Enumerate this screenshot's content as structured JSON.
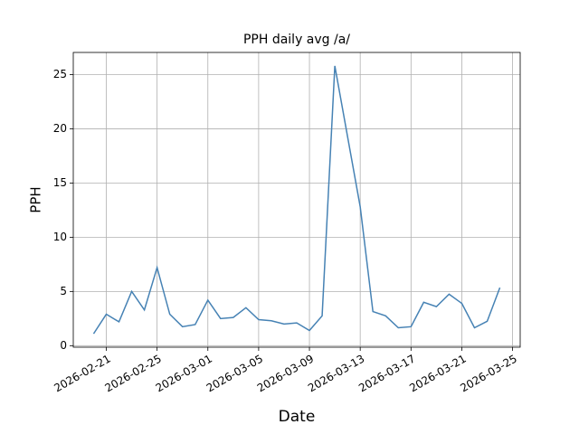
{
  "chart_data": {
    "type": "line",
    "title": "PPH daily avg /a/",
    "x_label": "Date",
    "y_label": "PPH",
    "x": [
      "2026-02-20",
      "2026-02-21",
      "2026-02-22",
      "2026-02-23",
      "2026-02-24",
      "2026-02-25",
      "2026-02-26",
      "2026-02-27",
      "2026-02-28",
      "2026-03-01",
      "2026-03-02",
      "2026-03-03",
      "2026-03-04",
      "2026-03-05",
      "2026-03-06",
      "2026-03-07",
      "2026-03-08",
      "2026-03-09",
      "2026-03-10",
      "2026-03-11",
      "2026-03-12",
      "2026-03-13",
      "2026-03-14",
      "2026-03-15",
      "2026-03-16",
      "2026-03-17",
      "2026-03-18",
      "2026-03-19",
      "2026-03-20",
      "2026-03-21",
      "2026-03-22",
      "2026-03-23",
      "2026-03-24"
    ],
    "series": [
      {
        "color": "#4682b4",
        "values": [
          1.1,
          2.9,
          2.2,
          5.0,
          3.3,
          7.2,
          2.9,
          1.75,
          1.95,
          4.2,
          2.5,
          2.6,
          3.5,
          2.4,
          2.3,
          2.0,
          2.1,
          1.4,
          2.75,
          25.8,
          19.3,
          12.8,
          3.15,
          2.75,
          1.65,
          1.75,
          4.0,
          3.6,
          4.75,
          3.9,
          1.65,
          2.25,
          5.35
        ]
      }
    ],
    "xticks": [
      "2026-02-21",
      "2026-02-25",
      "2026-03-01",
      "2026-03-05",
      "2026-03-09",
      "2026-03-13",
      "2026-03-17",
      "2026-03-21",
      "2026-03-25"
    ],
    "ylim": [
      -0.14,
      27.04
    ],
    "yticks": [
      0,
      5,
      10,
      15,
      20,
      25
    ],
    "grid": true
  }
}
